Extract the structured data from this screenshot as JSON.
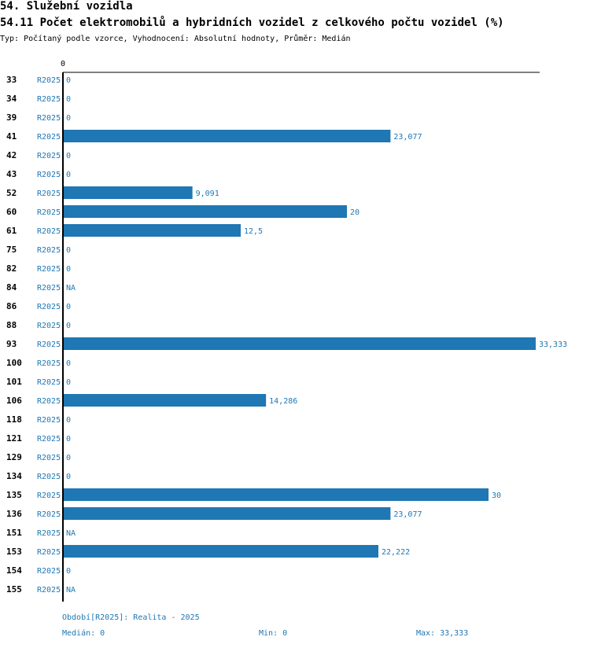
{
  "header": {
    "section": "54. Služební vozidla",
    "title": "54.11 Počet elektromobilů a hybridních vozidel z celkového počtu vozidel (%)",
    "subtitle": "Typ: Počítaný podle vzorce, Vyhodnocení: Absolutní hodnoty, Průměr: Medián"
  },
  "chart_data": {
    "type": "bar",
    "orientation": "horizontal",
    "axis_zero_label": "0",
    "xlim": [
      0,
      33.333
    ],
    "bar_color": "#1f77b4",
    "period_label": "R2025",
    "rows": [
      {
        "id": "33",
        "value": 0,
        "label": "0"
      },
      {
        "id": "34",
        "value": 0,
        "label": "0"
      },
      {
        "id": "39",
        "value": 0,
        "label": "0"
      },
      {
        "id": "41",
        "value": 23.077,
        "label": "23,077"
      },
      {
        "id": "42",
        "value": 0,
        "label": "0"
      },
      {
        "id": "43",
        "value": 0,
        "label": "0"
      },
      {
        "id": "52",
        "value": 9.091,
        "label": "9,091"
      },
      {
        "id": "60",
        "value": 20,
        "label": "20"
      },
      {
        "id": "61",
        "value": 12.5,
        "label": "12,5"
      },
      {
        "id": "75",
        "value": 0,
        "label": "0"
      },
      {
        "id": "82",
        "value": 0,
        "label": "0"
      },
      {
        "id": "84",
        "value": null,
        "label": "NA"
      },
      {
        "id": "86",
        "value": 0,
        "label": "0"
      },
      {
        "id": "88",
        "value": 0,
        "label": "0"
      },
      {
        "id": "93",
        "value": 33.333,
        "label": "33,333"
      },
      {
        "id": "100",
        "value": 0,
        "label": "0"
      },
      {
        "id": "101",
        "value": 0,
        "label": "0"
      },
      {
        "id": "106",
        "value": 14.286,
        "label": "14,286"
      },
      {
        "id": "118",
        "value": 0,
        "label": "0"
      },
      {
        "id": "121",
        "value": 0,
        "label": "0"
      },
      {
        "id": "129",
        "value": 0,
        "label": "0"
      },
      {
        "id": "134",
        "value": 0,
        "label": "0"
      },
      {
        "id": "135",
        "value": 30,
        "label": "30"
      },
      {
        "id": "136",
        "value": 23.077,
        "label": "23,077"
      },
      {
        "id": "151",
        "value": null,
        "label": "NA"
      },
      {
        "id": "153",
        "value": 22.222,
        "label": "22,222"
      },
      {
        "id": "154",
        "value": 0,
        "label": "0"
      },
      {
        "id": "155",
        "value": null,
        "label": "NA"
      }
    ]
  },
  "footer": {
    "period": "Období[R2025]: Realita - 2025",
    "median": "Medián: 0",
    "min": "Min: 0",
    "max": "Max: 33,333"
  }
}
